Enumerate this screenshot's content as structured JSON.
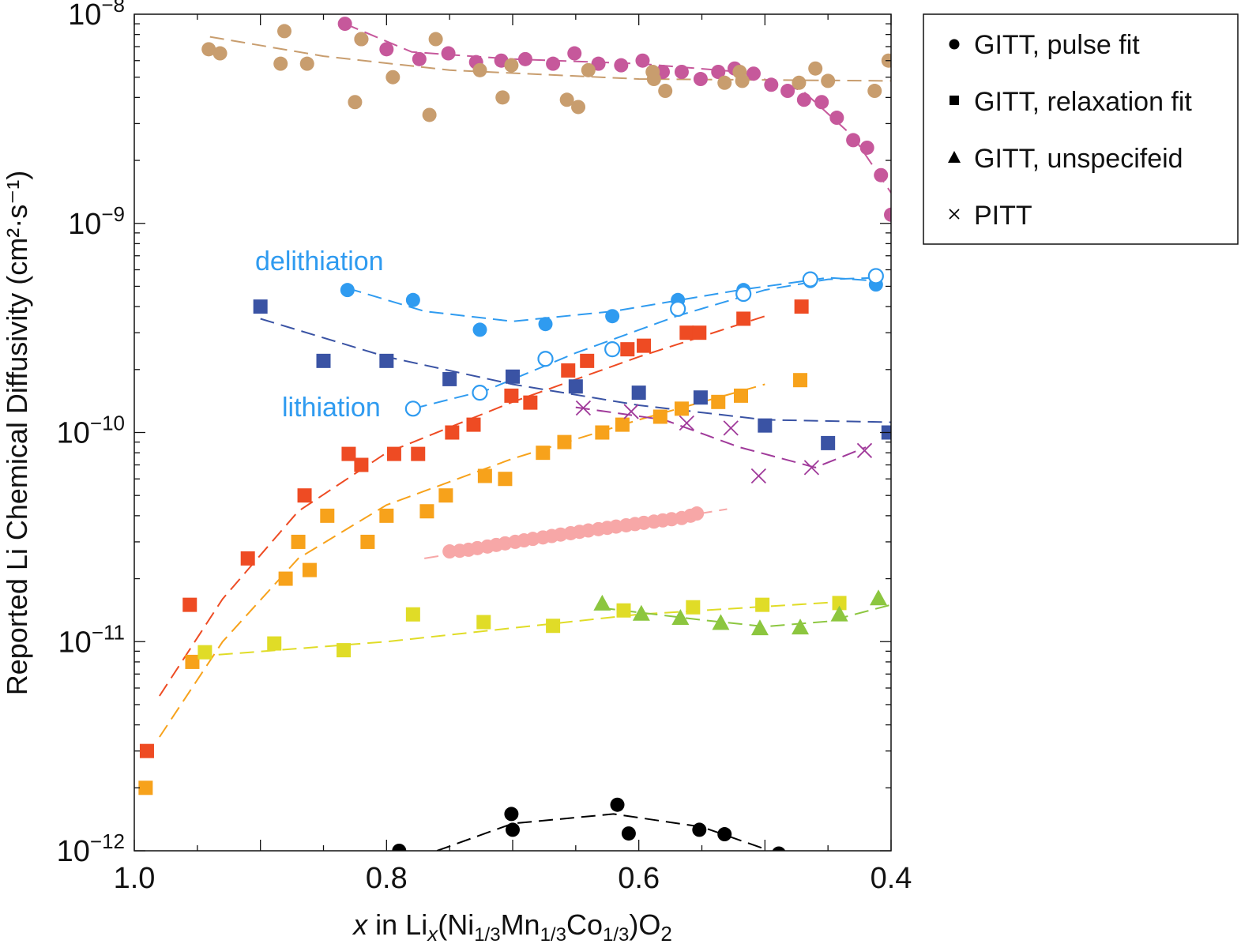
{
  "chart_data": {
    "type": "scatter",
    "xlabel": {
      "var": "x",
      "in": " in  Li",
      "sub_x": "x",
      "p1": "(Ni",
      "s1": "1/3",
      "p2": "Mn",
      "s2": "1/3",
      "p3": "Co",
      "s3": "1/3",
      "p4": ")O",
      "s4": "2"
    },
    "ylabel": "Reported Li Chemical Diffusivity (cm²·s⁻¹)",
    "xlim": [
      1.0,
      0.4
    ],
    "ylim": [
      1e-12,
      1e-08
    ],
    "yscale": "log",
    "x_ticks": [
      {
        "value": 1.0,
        "label": "1.0"
      },
      {
        "value": 0.8,
        "label": "0.8"
      },
      {
        "value": 0.6,
        "label": "0.6"
      },
      {
        "value": 0.4,
        "label": "0.4"
      }
    ],
    "y_ticks": [
      {
        "value": 1e-08,
        "base": "10",
        "exp": "−8"
      },
      {
        "value": 1e-09,
        "base": "10",
        "exp": "−9"
      },
      {
        "value": 1e-10,
        "base": "10",
        "exp": "−10"
      },
      {
        "value": 1e-11,
        "base": "10",
        "exp": "−11"
      },
      {
        "value": 1e-12,
        "base": "10",
        "exp": "−12"
      }
    ],
    "grid": false,
    "legend": {
      "placement": "right-outside",
      "entries": [
        {
          "marker": "circle",
          "label": "GITT, pulse fit"
        },
        {
          "marker": "square",
          "label": "GITT, relaxation fit"
        },
        {
          "marker": "triangle",
          "label": "GITT, unspecifeid"
        },
        {
          "marker": "cross",
          "label": "PITT"
        }
      ]
    },
    "annotations": [
      {
        "text": "delithiation",
        "color": "#2f9bf0"
      },
      {
        "text": "lithiation",
        "color": "#2f9bf0"
      }
    ],
    "series": [
      {
        "marker": "circle",
        "color": "#c6589b",
        "points": [
          [
            0.833,
            9e-09
          ],
          [
            0.82,
            7.6e-09
          ],
          [
            0.8,
            6.8e-09
          ],
          [
            0.774,
            6.1e-09
          ],
          [
            0.751,
            6.5e-09
          ],
          [
            0.729,
            5.9e-09
          ],
          [
            0.709,
            6e-09
          ],
          [
            0.69,
            6.1e-09
          ],
          [
            0.668,
            5.8e-09
          ],
          [
            0.651,
            6.5e-09
          ],
          [
            0.632,
            5.8e-09
          ],
          [
            0.614,
            5.7e-09
          ],
          [
            0.597,
            6e-09
          ],
          [
            0.581,
            5.3e-09
          ],
          [
            0.566,
            5.3e-09
          ],
          [
            0.551,
            4.9e-09
          ],
          [
            0.537,
            5.3e-09
          ],
          [
            0.524,
            5.5e-09
          ],
          [
            0.509,
            5.2e-09
          ],
          [
            0.495,
            4.6e-09
          ],
          [
            0.482,
            4.3e-09
          ],
          [
            0.469,
            3.9e-09
          ],
          [
            0.455,
            3.8e-09
          ],
          [
            0.443,
            3.2e-09
          ],
          [
            0.43,
            2.5e-09
          ],
          [
            0.419,
            2.3e-09
          ],
          [
            0.408,
            1.7e-09
          ],
          [
            0.4,
            1.1e-09
          ]
        ],
        "fit": [
          [
            0.833,
            9e-09
          ],
          [
            0.78,
            6.6e-09
          ],
          [
            0.7,
            6.1e-09
          ],
          [
            0.6,
            5.8e-09
          ],
          [
            0.52,
            5.3e-09
          ],
          [
            0.47,
            4.3e-09
          ],
          [
            0.43,
            2.6e-09
          ],
          [
            0.4,
            1.4e-09
          ]
        ]
      },
      {
        "marker": "circle",
        "color": "#c89d6e",
        "points": [
          [
            0.941,
            6.8e-09
          ],
          [
            0.932,
            6.5e-09
          ],
          [
            0.881,
            8.3e-09
          ],
          [
            0.884,
            5.8e-09
          ],
          [
            0.863,
            5.8e-09
          ],
          [
            0.825,
            3.8e-09
          ],
          [
            0.82,
            7.6e-09
          ],
          [
            0.795,
            5e-09
          ],
          [
            0.766,
            3.3e-09
          ],
          [
            0.761,
            7.6e-09
          ],
          [
            0.726,
            5.4e-09
          ],
          [
            0.708,
            4e-09
          ],
          [
            0.701,
            5.7e-09
          ],
          [
            0.657,
            3.9e-09
          ],
          [
            0.648,
            3.6e-09
          ],
          [
            0.64,
            5.4e-09
          ],
          [
            0.589,
            5.3e-09
          ],
          [
            0.588,
            4.9e-09
          ],
          [
            0.579,
            4.3e-09
          ],
          [
            0.532,
            4.7e-09
          ],
          [
            0.52,
            5.3e-09
          ],
          [
            0.518,
            4.8e-09
          ],
          [
            0.473,
            4.7e-09
          ],
          [
            0.46,
            5.5e-09
          ],
          [
            0.45,
            4.8e-09
          ],
          [
            0.413,
            4.3e-09
          ],
          [
            0.402,
            6e-09
          ]
        ],
        "fit": [
          [
            0.94,
            7.8e-09
          ],
          [
            0.85,
            6.3e-09
          ],
          [
            0.75,
            5.4e-09
          ],
          [
            0.6,
            4.9e-09
          ],
          [
            0.4,
            4.8e-09
          ]
        ]
      },
      {
        "marker": "circle",
        "color": "#2f9bf0",
        "label_ref": "delithiation",
        "points": [
          [
            0.831,
            4.8e-10
          ],
          [
            0.779,
            4.3e-10
          ],
          [
            0.726,
            3.1e-10
          ],
          [
            0.674,
            3.3e-10
          ],
          [
            0.621,
            3.6e-10
          ],
          [
            0.569,
            4.3e-10
          ],
          [
            0.517,
            4.8e-10
          ],
          [
            0.464,
            5.3e-10
          ],
          [
            0.412,
            5.1e-10
          ]
        ],
        "fit": [
          [
            0.831,
            4.9e-10
          ],
          [
            0.77,
            3.8e-10
          ],
          [
            0.7,
            3.4e-10
          ],
          [
            0.62,
            3.8e-10
          ],
          [
            0.52,
            4.8e-10
          ],
          [
            0.45,
            5.5e-10
          ],
          [
            0.41,
            5.3e-10
          ]
        ]
      },
      {
        "marker": "open-circle",
        "color": "#2f9bf0",
        "label_ref": "lithiation",
        "points": [
          [
            0.779,
            1.3e-10
          ],
          [
            0.726,
            1.55e-10
          ],
          [
            0.674,
            2.25e-10
          ],
          [
            0.621,
            2.5e-10
          ],
          [
            0.569,
            3.9e-10
          ],
          [
            0.517,
            4.6e-10
          ],
          [
            0.464,
            5.4e-10
          ],
          [
            0.412,
            5.6e-10
          ]
        ],
        "fit": [
          [
            0.779,
            1.3e-10
          ],
          [
            0.72,
            1.6e-10
          ],
          [
            0.65,
            2.4e-10
          ],
          [
            0.57,
            3.6e-10
          ],
          [
            0.5,
            4.8e-10
          ],
          [
            0.45,
            5.4e-10
          ],
          [
            0.41,
            5.5e-10
          ]
        ]
      },
      {
        "marker": "square",
        "color": "#3a53a4",
        "points": [
          [
            0.9,
            4e-10
          ],
          [
            0.85,
            2.2e-10
          ],
          [
            0.8,
            2.2e-10
          ],
          [
            0.75,
            1.8e-10
          ],
          [
            0.7,
            1.85e-10
          ],
          [
            0.65,
            1.66e-10
          ],
          [
            0.6,
            1.55e-10
          ],
          [
            0.551,
            1.47e-10
          ],
          [
            0.5,
            1.08e-10
          ],
          [
            0.45,
            8.9e-11
          ],
          [
            0.402,
            1e-10
          ]
        ],
        "fit": [
          [
            0.9,
            3.5e-10
          ],
          [
            0.8,
            2.3e-10
          ],
          [
            0.7,
            1.7e-10
          ],
          [
            0.6,
            1.35e-10
          ],
          [
            0.5,
            1.15e-10
          ],
          [
            0.4,
            1.12e-10
          ]
        ]
      },
      {
        "marker": "square",
        "color": "#ee4b23",
        "points": [
          [
            0.99,
            3e-12
          ],
          [
            0.956,
            1.5e-11
          ],
          [
            0.91,
            2.5e-11
          ],
          [
            0.865,
            5e-11
          ],
          [
            0.83,
            7.9e-11
          ],
          [
            0.82,
            7e-11
          ],
          [
            0.794,
            7.9e-11
          ],
          [
            0.775,
            7.9e-11
          ],
          [
            0.748,
            1e-10
          ],
          [
            0.731,
            1.09e-10
          ],
          [
            0.701,
            1.5e-10
          ],
          [
            0.686,
            1.39e-10
          ],
          [
            0.656,
            1.98e-10
          ],
          [
            0.641,
            2.2e-10
          ],
          [
            0.609,
            2.5e-10
          ],
          [
            0.596,
            2.6e-10
          ],
          [
            0.562,
            3e-10
          ],
          [
            0.552,
            3e-10
          ],
          [
            0.517,
            3.5e-10
          ],
          [
            0.471,
            4e-10
          ]
        ],
        "fit": [
          [
            0.98,
            5.5e-12
          ],
          [
            0.93,
            1.6e-11
          ],
          [
            0.87,
            4.2e-11
          ],
          [
            0.8,
            8e-11
          ],
          [
            0.7,
            1.4e-10
          ],
          [
            0.6,
            2.3e-10
          ],
          [
            0.5,
            3.6e-10
          ]
        ]
      },
      {
        "marker": "square",
        "color": "#f7a21b",
        "points": [
          [
            0.991,
            2e-12
          ],
          [
            0.954,
            8e-12
          ],
          [
            0.88,
            2e-11
          ],
          [
            0.87,
            3e-11
          ],
          [
            0.861,
            2.2e-11
          ],
          [
            0.847,
            4e-11
          ],
          [
            0.815,
            3e-11
          ],
          [
            0.8,
            4e-11
          ],
          [
            0.768,
            4.2e-11
          ],
          [
            0.753,
            5e-11
          ],
          [
            0.722,
            6.2e-11
          ],
          [
            0.706,
            6e-11
          ],
          [
            0.676,
            8e-11
          ],
          [
            0.659,
            9e-11
          ],
          [
            0.629,
            1e-10
          ],
          [
            0.613,
            1.09e-10
          ],
          [
            0.583,
            1.19e-10
          ],
          [
            0.566,
            1.3e-10
          ],
          [
            0.537,
            1.4e-10
          ],
          [
            0.519,
            1.5e-10
          ],
          [
            0.472,
            1.78e-10
          ]
        ],
        "fit": [
          [
            0.98,
            3.5e-12
          ],
          [
            0.93,
            1e-11
          ],
          [
            0.87,
            2.5e-11
          ],
          [
            0.8,
            4.5e-11
          ],
          [
            0.7,
            7.5e-11
          ],
          [
            0.6,
            1.15e-10
          ],
          [
            0.5,
            1.7e-10
          ]
        ]
      },
      {
        "marker": "square",
        "color": "#e0dc27",
        "points": [
          [
            0.944,
            8.9e-12
          ],
          [
            0.889,
            9.8e-12
          ],
          [
            0.834,
            9.1e-12
          ],
          [
            0.779,
            1.35e-11
          ],
          [
            0.723,
            1.24e-11
          ],
          [
            0.668,
            1.19e-11
          ],
          [
            0.612,
            1.41e-11
          ],
          [
            0.557,
            1.46e-11
          ],
          [
            0.502,
            1.5e-11
          ],
          [
            0.441,
            1.53e-11
          ]
        ],
        "fit": [
          [
            0.95,
            8.5e-12
          ],
          [
            0.8,
            1e-11
          ],
          [
            0.6,
            1.35e-11
          ],
          [
            0.44,
            1.55e-11
          ]
        ]
      },
      {
        "marker": "triangle",
        "color": "#8cc63f",
        "points": [
          [
            0.629,
            1.51e-11
          ],
          [
            0.598,
            1.35e-11
          ],
          [
            0.567,
            1.29e-11
          ],
          [
            0.535,
            1.22e-11
          ],
          [
            0.504,
            1.15e-11
          ],
          [
            0.472,
            1.16e-11
          ],
          [
            0.441,
            1.34e-11
          ],
          [
            0.41,
            1.6e-11
          ]
        ],
        "fit": [
          [
            0.63,
            1.45e-11
          ],
          [
            0.55,
            1.27e-11
          ],
          [
            0.5,
            1.18e-11
          ],
          [
            0.45,
            1.25e-11
          ],
          [
            0.4,
            1.5e-11
          ]
        ]
      },
      {
        "marker": "cross",
        "color": "#a03a9a",
        "points": [
          [
            0.644,
            1.31e-10
          ],
          [
            0.606,
            1.26e-10
          ],
          [
            0.562,
            1.11e-10
          ],
          [
            0.527,
            1.05e-10
          ],
          [
            0.505,
            6.2e-11
          ],
          [
            0.463,
            6.8e-11
          ],
          [
            0.421,
            8.2e-11
          ]
        ],
        "fit": [
          [
            0.65,
            1.32e-10
          ],
          [
            0.58,
            1.15e-10
          ],
          [
            0.52,
            8.5e-11
          ],
          [
            0.46,
            6.8e-11
          ],
          [
            0.42,
            8.5e-11
          ]
        ]
      },
      {
        "marker": "circle",
        "color": "#f7a7a7",
        "points": [
          [
            0.75,
            2.7e-11
          ],
          [
            0.742,
            2.72e-11
          ],
          [
            0.735,
            2.75e-11
          ],
          [
            0.728,
            2.8e-11
          ],
          [
            0.72,
            2.85e-11
          ],
          [
            0.713,
            2.9e-11
          ],
          [
            0.706,
            2.95e-11
          ],
          [
            0.698,
            3e-11
          ],
          [
            0.691,
            3.05e-11
          ],
          [
            0.684,
            3.1e-11
          ],
          [
            0.676,
            3.15e-11
          ],
          [
            0.669,
            3.2e-11
          ],
          [
            0.662,
            3.25e-11
          ],
          [
            0.654,
            3.3e-11
          ],
          [
            0.647,
            3.35e-11
          ],
          [
            0.64,
            3.4e-11
          ],
          [
            0.632,
            3.45e-11
          ],
          [
            0.625,
            3.5e-11
          ],
          [
            0.618,
            3.55e-11
          ],
          [
            0.61,
            3.6e-11
          ],
          [
            0.603,
            3.65e-11
          ],
          [
            0.596,
            3.7e-11
          ],
          [
            0.588,
            3.75e-11
          ],
          [
            0.581,
            3.8e-11
          ],
          [
            0.574,
            3.85e-11
          ],
          [
            0.566,
            3.9e-11
          ],
          [
            0.559,
            4e-11
          ],
          [
            0.554,
            4.1e-11
          ]
        ],
        "fit": [
          [
            0.77,
            2.5e-11
          ],
          [
            0.53,
            4.3e-11
          ]
        ]
      },
      {
        "marker": "circle",
        "color": "#000000",
        "points": [
          [
            0.79,
            1e-12
          ],
          [
            0.701,
            1.5e-12
          ],
          [
            0.7,
            1.26e-12
          ],
          [
            0.617,
            1.66e-12
          ],
          [
            0.608,
            1.21e-12
          ],
          [
            0.552,
            1.26e-12
          ],
          [
            0.532,
            1.2e-12
          ],
          [
            0.489,
            9.7e-13
          ]
        ],
        "fit": [
          [
            0.76,
            1e-12
          ],
          [
            0.7,
            1.35e-12
          ],
          [
            0.62,
            1.5e-12
          ],
          [
            0.55,
            1.3e-12
          ],
          [
            0.5,
            1.02e-12
          ]
        ]
      }
    ]
  }
}
